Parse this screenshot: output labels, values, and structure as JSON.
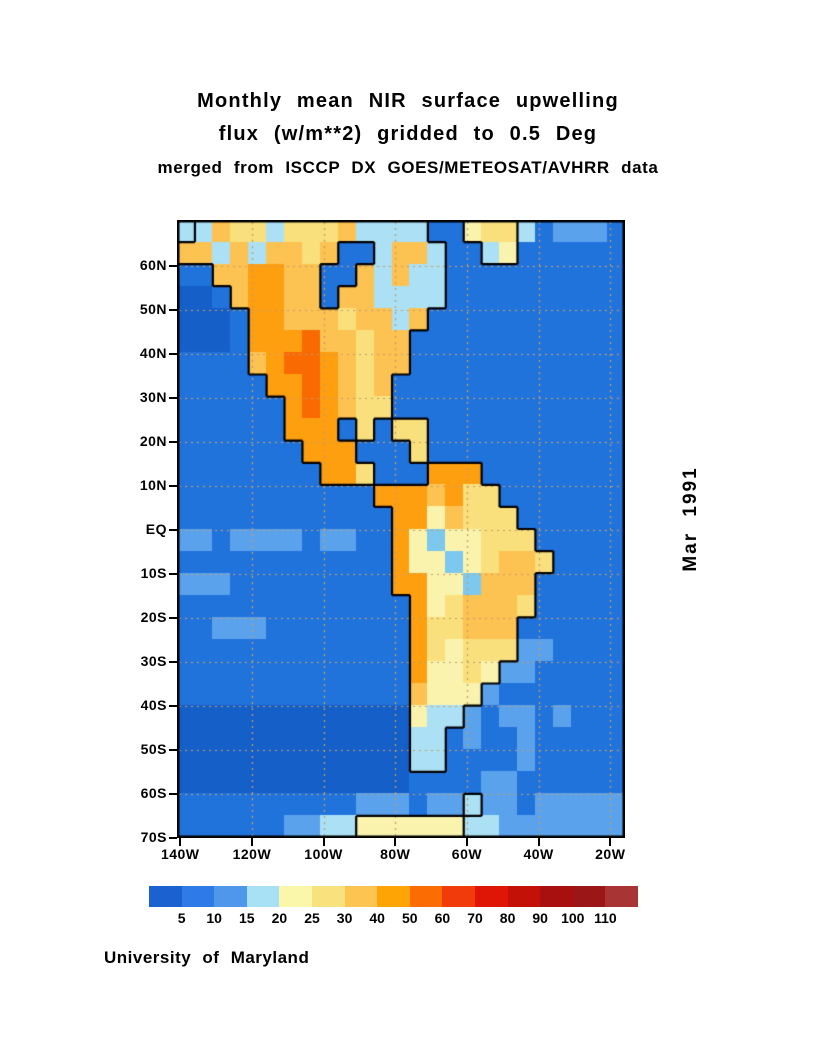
{
  "title": {
    "line1": "Monthly mean NIR surface upwelling",
    "line2": "flux (w/m**2) gridded to 0.5 Deg",
    "line3": "merged from ISCCP DX GOES/METEOSAT/AVHRR data"
  },
  "side_label": "Mar 1991",
  "credit": "University of Maryland",
  "chart_data": {
    "type": "heatmap",
    "title": "Monthly mean NIR surface upwelling flux (w/m**2) gridded to 0.5 Deg",
    "subtitle": "merged from ISCCP DX GOES/METEOSAT/AVHRR data",
    "date": "Mar 1991",
    "units": "w/m**2",
    "region": "Americas, 140W-15W, 70S-70N, cylindrical equidistant projection",
    "map": {
      "lon_min": -140.9,
      "lon_max": -15.9,
      "lat_max": 70.5,
      "lat_min": -70
    },
    "x_ticks": [
      {
        "label": "140W",
        "lon": -140
      },
      {
        "label": "120W",
        "lon": -120
      },
      {
        "label": "100W",
        "lon": -100
      },
      {
        "label": "80W",
        "lon": -80
      },
      {
        "label": "60W",
        "lon": -60
      },
      {
        "label": "40W",
        "lon": -40
      },
      {
        "label": "20W",
        "lon": -20
      }
    ],
    "y_ticks": [
      {
        "label": "60N",
        "lat": 60
      },
      {
        "label": "50N",
        "lat": 50
      },
      {
        "label": "40N",
        "lat": 40
      },
      {
        "label": "30N",
        "lat": 30
      },
      {
        "label": "20N",
        "lat": 20
      },
      {
        "label": "10N",
        "lat": 10
      },
      {
        "label": "EQ",
        "lat": 0
      },
      {
        "label": "10S",
        "lat": -10
      },
      {
        "label": "20S",
        "lat": -20
      },
      {
        "label": "30S",
        "lat": -30
      },
      {
        "label": "40S",
        "lat": -40
      },
      {
        "label": "50S",
        "lat": -50
      },
      {
        "label": "60S",
        "lat": -60
      },
      {
        "label": "70S",
        "lat": -70
      }
    ],
    "gridlines": {
      "lats": [
        60,
        50,
        40,
        30,
        20,
        10,
        0,
        -10,
        -20,
        -30,
        -40,
        -50,
        -60
      ],
      "lons": [
        -120,
        -100,
        -80,
        -60,
        -40,
        -20
      ],
      "style": "dotted",
      "color": "#C89C66"
    },
    "colorbar": {
      "tick_labels": [
        "5",
        "10",
        "15",
        "20",
        "25",
        "30",
        "40",
        "50",
        "60",
        "70",
        "80",
        "90",
        "100",
        "110"
      ],
      "colors": [
        "#1B62D0",
        "#2E7BE8",
        "#4E97EA",
        "#A8E0F6",
        "#FAF6AA",
        "#F8E27D",
        "#FCC450",
        "#FEA405",
        "#FB6C03",
        "#F23B0B",
        "#DF1505",
        "#C31108",
        "#A81010",
        "#9B1717",
        "#A93434"
      ]
    },
    "grid": {
      "comment": "5-degree flux cells, 25 cols (140W to 15W) x 28 rows (70N to 70S). Chars map to flux bins via palette; chars a-g are land, 0-3 ocean.",
      "cols": 25,
      "rows": 28,
      "land_chars": "abcdefg",
      "palette": {
        "0": "#155FC9",
        "1": "#2173DC",
        "2": "#5AA2EC",
        "3": "#ABE0F5",
        "a": "#ABE0F5",
        "b": "#FAF3AE",
        "c": "#F9E07C",
        "d": "#FCC252",
        "e": "#FE9F10",
        "f": "#F96A02",
        "g": "#7CC8EE"
      },
      "palette_values": {
        "0": "<5",
        "1": "5-10",
        "2": "10-15",
        "3": "15-20",
        "a": "15-20",
        "b": "20-25",
        "c": "25-30",
        "d": "30-40",
        "e": "40-50",
        "f": "50-60",
        "g": "10-15"
      },
      "rows_data": [
        "3adccacccdaaaa11bcc312221",
        "ddadaddcd11adda11ab111111",
        "11ddeedd11dadaa1111111111",
        "001deedd1ddaaaa1111111111",
        "0001eedddcddad11111111111",
        "0001eeefddcdd111111111111",
        "1111deffedcdd111111111111",
        "11111eefedcd1111111111111",
        "111111efedcc1111111111111",
        "111111eee1c1cc11111111111",
        "1111111eee111c11111111111",
        "11111111eec111eee11111111",
        "11111111111eeedecc1111111",
        "111111111111eebdccc111111",
        "221222212211ebgbbccc11111",
        "111111111111ebbgbcddc1111",
        "222111111111eebbgddd11111",
        "1111111111111ebcdddc11111",
        "1122211111111eccddd111111",
        "1111111111111ecbccc221111",
        "1111111111111ebbcb2211111",
        "1111111111111dbbb21111111",
        "0000000000000baa212212111",
        "0000000000000aa1211211111",
        "0000000000000aa1111211111",
        "0000000000000111122111111",
        "1111111111222122a22122222",
        "1111112233bbbbbb332222222"
      ]
    }
  }
}
